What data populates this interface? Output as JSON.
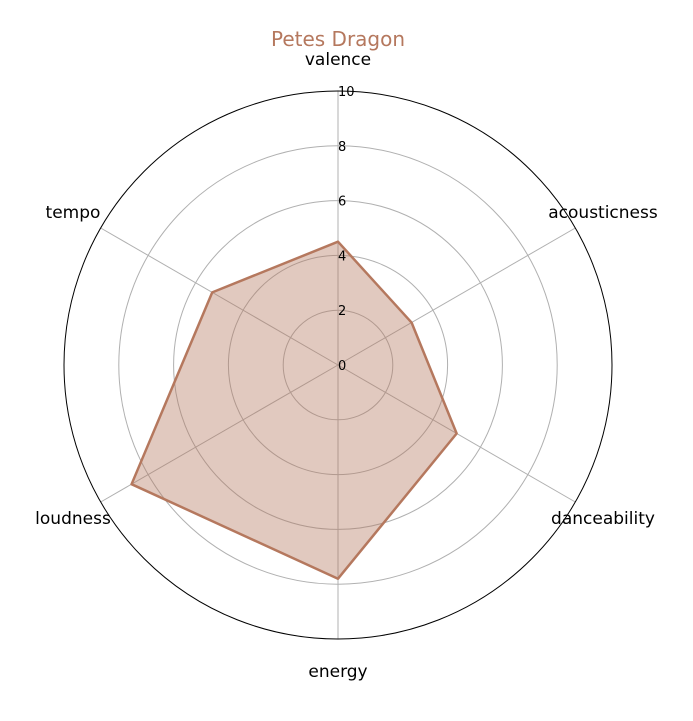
{
  "chart_data": {
    "type": "radar",
    "title": "Petes Dragon",
    "axes": [
      "valence",
      "acousticness",
      "danceability",
      "energy",
      "loudness",
      "tempo"
    ],
    "series": [
      {
        "values": [
          4.5,
          3.1,
          5.0,
          7.8,
          8.7,
          5.3
        ]
      }
    ],
    "rlim": [
      0,
      10
    ],
    "rticks": [
      "0",
      "2",
      "4",
      "6",
      "8",
      "10"
    ],
    "grid": true,
    "colors": {
      "series": "#b5785e",
      "fill": "#b5785e",
      "grid": "#b0b0b0",
      "frame": "#000000"
    }
  }
}
